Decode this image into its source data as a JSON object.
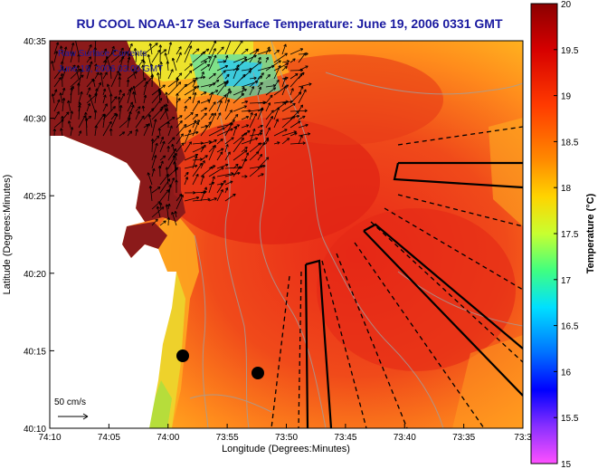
{
  "title": "RU COOL  NOAA-17  Sea Surface Temperature:  June 19, 2006 0331 GMT",
  "map": {
    "xlabel": "Longitude (Degrees:Minutes)",
    "ylabel": "Latitude (Degrees:Minutes)",
    "x_ticks": [
      "74:10",
      "74:05",
      "74:00",
      "73:55",
      "73:50",
      "73:45",
      "73:40",
      "73:35",
      "73:3"
    ],
    "y_ticks": [
      "40:35",
      "40:30",
      "40:25",
      "40:20",
      "40:15",
      "40:10"
    ],
    "legend_line1": "Raw Surface Currents",
    "legend_line2": "June 19, 2006 03:00 GMT",
    "scale_label": "50 cm/s"
  },
  "colorbar": {
    "label": "Temperature (°C)",
    "ticks": [
      "20",
      "19.5",
      "19",
      "18.5",
      "18",
      "17.5",
      "17",
      "16.5",
      "16",
      "15.5",
      "15"
    ],
    "min": 15,
    "max": 20
  },
  "colors": {
    "title": "#1a1aa0",
    "land": "#8b1a1a",
    "ocean_warm": "#e83020",
    "ocean_mid": "#ff8a1a",
    "ocean_cool": "#f5e020",
    "sst_high": "#9a0000",
    "sst_low": "#ff40ff"
  }
}
